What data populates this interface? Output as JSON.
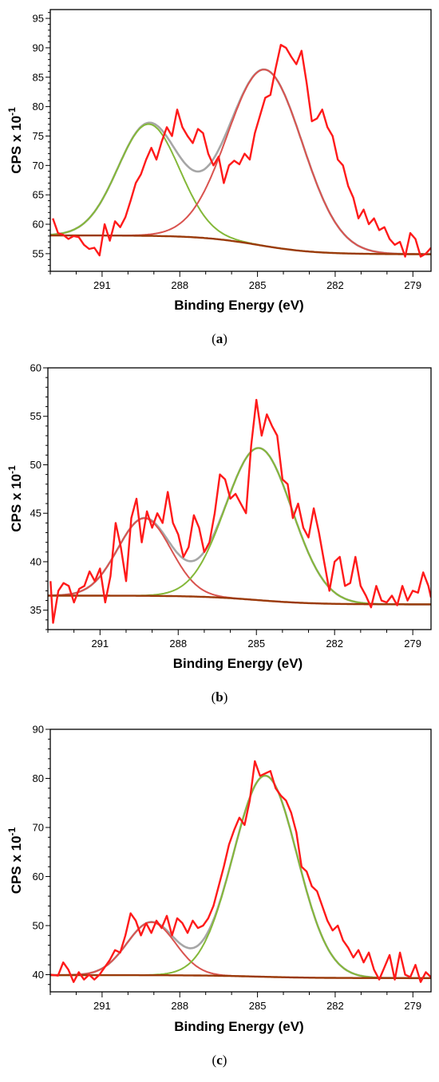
{
  "colors": {
    "raw": "#ff1a1a",
    "envelope": "#a6a6a6",
    "background": "#9a3a0a",
    "peak_green": "#84b839",
    "peak_red": "#d9534f"
  },
  "chart_data": [
    {
      "type": "line",
      "caption_open": "(",
      "caption_letter": "a",
      "caption_close": ")",
      "xlabel": "Binding Energy (eV)",
      "ylabel_base": "CPS x 10",
      "ylabel_exp": "-1",
      "xlim": [
        293,
        278.3
      ],
      "x_reversed": true,
      "ylim": [
        52,
        96.5
      ],
      "x_ticks": [
        291,
        288,
        285,
        282,
        279
      ],
      "y_ticks": [
        55,
        60,
        65,
        70,
        75,
        80,
        85,
        90,
        95
      ],
      "background": {
        "left": {
          "x": 292.3,
          "y": 58.1
        },
        "right": {
          "x": 278.3,
          "y": 54.9
        },
        "mid_y": 57.2
      },
      "peaks": [
        {
          "center": 289.2,
          "height": 19.0,
          "width": 2.8,
          "color": "green"
        },
        {
          "center": 284.7,
          "height": 30.0,
          "width": 3.4,
          "color": "red"
        }
      ],
      "series": [
        {
          "role": "raw",
          "points": [
            [
              292.9,
              61.0
            ],
            [
              292.7,
              58.5
            ],
            [
              292.5,
              58.2
            ],
            [
              292.3,
              57.5
            ],
            [
              292.1,
              58.0
            ],
            [
              291.9,
              57.8
            ],
            [
              291.7,
              56.5
            ],
            [
              291.5,
              55.8
            ],
            [
              291.3,
              56.0
            ],
            [
              291.1,
              54.7
            ],
            [
              290.9,
              60.0
            ],
            [
              290.7,
              57.2
            ],
            [
              290.5,
              60.5
            ],
            [
              290.3,
              59.5
            ],
            [
              290.1,
              61.2
            ],
            [
              289.9,
              64.0
            ],
            [
              289.7,
              67.0
            ],
            [
              289.5,
              68.5
            ],
            [
              289.3,
              71.0
            ],
            [
              289.1,
              73.0
            ],
            [
              288.9,
              71.0
            ],
            [
              288.7,
              74.0
            ],
            [
              288.5,
              76.5
            ],
            [
              288.3,
              75.0
            ],
            [
              288.1,
              79.5
            ],
            [
              287.9,
              76.5
            ],
            [
              287.7,
              75.0
            ],
            [
              287.5,
              73.8
            ],
            [
              287.3,
              76.2
            ],
            [
              287.1,
              75.5
            ],
            [
              286.9,
              72.0
            ],
            [
              286.7,
              70.0
            ],
            [
              286.5,
              71.5
            ],
            [
              286.3,
              67.0
            ],
            [
              286.1,
              70.0
            ],
            [
              285.9,
              70.8
            ],
            [
              285.7,
              70.2
            ],
            [
              285.5,
              72.0
            ],
            [
              285.3,
              71.0
            ],
            [
              285.1,
              75.5
            ],
            [
              284.9,
              78.5
            ],
            [
              284.7,
              81.5
            ],
            [
              284.5,
              82.0
            ],
            [
              284.3,
              86.5
            ],
            [
              284.1,
              90.5
            ],
            [
              283.9,
              90.0
            ],
            [
              283.7,
              88.5
            ],
            [
              283.5,
              87.2
            ],
            [
              283.3,
              89.5
            ],
            [
              283.1,
              84.0
            ],
            [
              282.9,
              77.5
            ],
            [
              282.7,
              78.0
            ],
            [
              282.5,
              79.5
            ],
            [
              282.3,
              76.5
            ],
            [
              282.1,
              75.0
            ],
            [
              281.9,
              71.0
            ],
            [
              281.7,
              70.0
            ],
            [
              281.5,
              66.5
            ],
            [
              281.3,
              64.5
            ],
            [
              281.1,
              61.0
            ],
            [
              280.9,
              62.5
            ],
            [
              280.7,
              60.0
            ],
            [
              280.5,
              61.0
            ],
            [
              280.3,
              59.0
            ],
            [
              280.1,
              59.5
            ],
            [
              279.9,
              57.5
            ],
            [
              279.7,
              56.5
            ],
            [
              279.5,
              57.0
            ],
            [
              279.3,
              54.5
            ],
            [
              279.1,
              58.5
            ],
            [
              278.9,
              57.5
            ],
            [
              278.7,
              54.5
            ],
            [
              278.5,
              55.0
            ],
            [
              278.3,
              56.0
            ]
          ]
        }
      ]
    },
    {
      "type": "line",
      "caption_open": "(",
      "caption_letter": "b",
      "caption_close": ")",
      "xlabel": "Binding Energy (eV)",
      "ylabel_base": "CPS x 10",
      "ylabel_exp": "-1",
      "xlim": [
        293,
        278.3
      ],
      "x_reversed": true,
      "ylim": [
        33,
        60
      ],
      "x_ticks": [
        291,
        288,
        285,
        282,
        279
      ],
      "y_ticks": [
        35,
        40,
        45,
        50,
        55,
        60
      ],
      "background": {
        "left": {
          "x": 293.0,
          "y": 36.5
        },
        "right": {
          "x": 278.3,
          "y": 35.6
        },
        "mid_y": 36.0
      },
      "peaks": [
        {
          "center": 289.3,
          "height": 8.0,
          "width": 2.4,
          "color": "red"
        },
        {
          "center": 284.9,
          "height": 15.7,
          "width": 3.0,
          "color": "green"
        }
      ],
      "series": [
        {
          "role": "raw",
          "points": [
            [
              292.9,
              38.0
            ],
            [
              292.8,
              33.7
            ],
            [
              292.6,
              37.0
            ],
            [
              292.4,
              37.8
            ],
            [
              292.2,
              37.5
            ],
            [
              292.0,
              35.8
            ],
            [
              291.8,
              37.2
            ],
            [
              291.6,
              37.5
            ],
            [
              291.4,
              39.0
            ],
            [
              291.2,
              38.0
            ],
            [
              291.0,
              39.3
            ],
            [
              290.8,
              35.8
            ],
            [
              290.6,
              38.5
            ],
            [
              290.4,
              44.0
            ],
            [
              290.2,
              41.5
            ],
            [
              290.0,
              38.0
            ],
            [
              289.8,
              44.5
            ],
            [
              289.6,
              46.5
            ],
            [
              289.4,
              42.0
            ],
            [
              289.2,
              45.2
            ],
            [
              289.0,
              43.5
            ],
            [
              288.8,
              45.0
            ],
            [
              288.6,
              44.0
            ],
            [
              288.4,
              47.2
            ],
            [
              288.2,
              44.0
            ],
            [
              288.0,
              42.8
            ],
            [
              287.8,
              40.5
            ],
            [
              287.6,
              41.5
            ],
            [
              287.4,
              44.8
            ],
            [
              287.2,
              43.5
            ],
            [
              287.0,
              41.0
            ],
            [
              286.8,
              42.0
            ],
            [
              286.6,
              45.0
            ],
            [
              286.4,
              49.0
            ],
            [
              286.2,
              48.5
            ],
            [
              286.0,
              46.5
            ],
            [
              285.8,
              47.0
            ],
            [
              285.6,
              46.0
            ],
            [
              285.4,
              45.0
            ],
            [
              285.2,
              52.0
            ],
            [
              285.0,
              56.7
            ],
            [
              284.8,
              53.0
            ],
            [
              284.6,
              55.2
            ],
            [
              284.4,
              54.0
            ],
            [
              284.2,
              53.0
            ],
            [
              284.0,
              48.5
            ],
            [
              283.8,
              48.0
            ],
            [
              283.6,
              44.5
            ],
            [
              283.4,
              46.0
            ],
            [
              283.2,
              43.5
            ],
            [
              283.0,
              42.5
            ],
            [
              282.8,
              45.5
            ],
            [
              282.6,
              43.0
            ],
            [
              282.4,
              40.0
            ],
            [
              282.2,
              37.0
            ],
            [
              282.0,
              40.0
            ],
            [
              281.8,
              40.5
            ],
            [
              281.6,
              37.5
            ],
            [
              281.4,
              37.8
            ],
            [
              281.2,
              40.5
            ],
            [
              281.0,
              37.5
            ],
            [
              280.8,
              36.5
            ],
            [
              280.6,
              35.3
            ],
            [
              280.4,
              37.5
            ],
            [
              280.2,
              36.0
            ],
            [
              280.0,
              35.8
            ],
            [
              279.8,
              36.5
            ],
            [
              279.6,
              35.5
            ],
            [
              279.4,
              37.5
            ],
            [
              279.2,
              36.0
            ],
            [
              279.0,
              37.0
            ],
            [
              278.8,
              36.8
            ],
            [
              278.6,
              38.9
            ],
            [
              278.4,
              37.5
            ],
            [
              278.3,
              36.3
            ]
          ]
        }
      ]
    },
    {
      "type": "line",
      "caption_open": "(",
      "caption_letter": "c",
      "caption_close": ")",
      "xlabel": "Binding Energy (eV)",
      "ylabel_base": "CPS x 10",
      "ylabel_exp": "-1",
      "xlim": [
        293,
        278.3
      ],
      "x_reversed": true,
      "ylim": [
        36.5,
        90
      ],
      "x_ticks": [
        291,
        288,
        285,
        282,
        279
      ],
      "y_ticks": [
        40,
        50,
        60,
        70,
        80,
        90
      ],
      "background": {
        "left": {
          "x": 293.0,
          "y": 39.9
        },
        "right": {
          "x": 278.3,
          "y": 39.3
        },
        "mid_y": 39.6
      },
      "peaks": [
        {
          "center": 289.1,
          "height": 10.8,
          "width": 2.2,
          "color": "red"
        },
        {
          "center": 284.7,
          "height": 41.0,
          "width": 2.9,
          "color": "green"
        }
      ],
      "series": [
        {
          "role": "raw",
          "points": [
            [
              293.0,
              40.0
            ],
            [
              292.7,
              39.8
            ],
            [
              292.5,
              42.5
            ],
            [
              292.3,
              41.0
            ],
            [
              292.1,
              38.5
            ],
            [
              291.9,
              40.5
            ],
            [
              291.7,
              39.0
            ],
            [
              291.5,
              40.0
            ],
            [
              291.3,
              39.0
            ],
            [
              291.1,
              40.0
            ],
            [
              290.9,
              41.5
            ],
            [
              290.7,
              43.0
            ],
            [
              290.5,
              45.0
            ],
            [
              290.3,
              44.5
            ],
            [
              290.1,
              48.0
            ],
            [
              289.9,
              52.5
            ],
            [
              289.7,
              51.0
            ],
            [
              289.5,
              48.0
            ],
            [
              289.3,
              50.5
            ],
            [
              289.1,
              48.5
            ],
            [
              288.9,
              51.0
            ],
            [
              288.7,
              49.5
            ],
            [
              288.5,
              52.0
            ],
            [
              288.3,
              48.0
            ],
            [
              288.1,
              51.5
            ],
            [
              287.9,
              50.5
            ],
            [
              287.7,
              48.5
            ],
            [
              287.5,
              51.0
            ],
            [
              287.3,
              49.5
            ],
            [
              287.1,
              50.0
            ],
            [
              286.9,
              51.5
            ],
            [
              286.7,
              54.0
            ],
            [
              286.5,
              58.0
            ],
            [
              286.3,
              62.0
            ],
            [
              286.1,
              66.5
            ],
            [
              285.9,
              69.5
            ],
            [
              285.7,
              72.0
            ],
            [
              285.5,
              70.5
            ],
            [
              285.3,
              75.5
            ],
            [
              285.1,
              83.5
            ],
            [
              284.9,
              80.5
            ],
            [
              284.7,
              81.0
            ],
            [
              284.5,
              81.5
            ],
            [
              284.3,
              78.0
            ],
            [
              284.1,
              76.5
            ],
            [
              283.9,
              75.5
            ],
            [
              283.7,
              73.0
            ],
            [
              283.5,
              69.0
            ],
            [
              283.3,
              62.0
            ],
            [
              283.1,
              61.0
            ],
            [
              282.9,
              58.0
            ],
            [
              282.7,
              57.0
            ],
            [
              282.5,
              54.0
            ],
            [
              282.3,
              51.0
            ],
            [
              282.1,
              49.0
            ],
            [
              281.9,
              50.0
            ],
            [
              281.7,
              47.0
            ],
            [
              281.5,
              45.5
            ],
            [
              281.3,
              43.5
            ],
            [
              281.1,
              45.0
            ],
            [
              280.9,
              42.5
            ],
            [
              280.7,
              44.5
            ],
            [
              280.5,
              41.0
            ],
            [
              280.3,
              39.0
            ],
            [
              280.1,
              41.5
            ],
            [
              279.9,
              44.0
            ],
            [
              279.7,
              39.0
            ],
            [
              279.5,
              44.5
            ],
            [
              279.3,
              40.0
            ],
            [
              279.1,
              39.5
            ],
            [
              278.9,
              42.0
            ],
            [
              278.7,
              38.5
            ],
            [
              278.5,
              40.5
            ],
            [
              278.3,
              39.5
            ]
          ]
        }
      ]
    }
  ]
}
